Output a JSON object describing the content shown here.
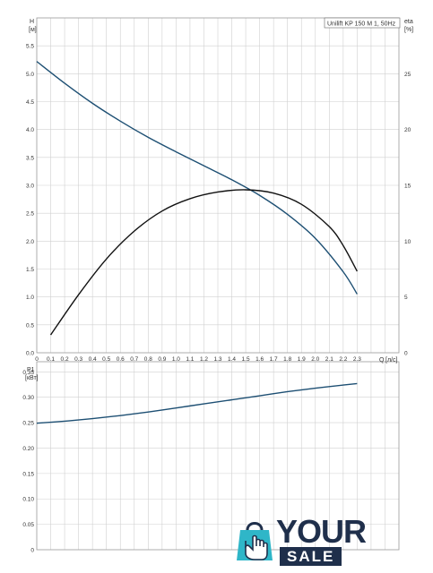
{
  "legend": {
    "label": "Unilift KP 150 M 1, 50Hz"
  },
  "chart_data": [
    {
      "type": "line",
      "title": "",
      "ylabel": "H",
      "yunit": "[м]",
      "y2label": "eta",
      "y2unit": "[%]",
      "xlabel": "Q",
      "xunit": "[л/с]",
      "xlim": [
        0,
        2.6
      ],
      "ylim": [
        0,
        6.0
      ],
      "y2lim": [
        0,
        30
      ],
      "grid": true,
      "x_ticks": [
        "0",
        "0.1",
        "0.2",
        "0.3",
        "0.4",
        "0.5",
        "0.6",
        "0.7",
        "0.8",
        "0.9",
        "1.0",
        "1.1",
        "1.2",
        "1.3",
        "1.4",
        "1.5",
        "1.6",
        "1.7",
        "1.8",
        "1.9",
        "2.0",
        "2.1",
        "2.2",
        "2.3"
      ],
      "y_ticks": [
        "0.0",
        "0.5",
        "1.0",
        "1.5",
        "2.0",
        "2.5",
        "3.0",
        "3.5",
        "4.0",
        "4.5",
        "5.0",
        "5.5"
      ],
      "y2_ticks": [
        "0",
        "5",
        "10",
        "15",
        "20",
        "25"
      ],
      "series": [
        {
          "axis": "left",
          "color": "#1d4f73",
          "x": [
            0,
            0.2,
            0.4,
            0.6,
            0.8,
            1.0,
            1.2,
            1.4,
            1.6,
            1.8,
            2.0,
            2.2,
            2.3
          ],
          "y": [
            5.22,
            4.83,
            4.47,
            4.15,
            3.86,
            3.6,
            3.35,
            3.1,
            2.82,
            2.48,
            2.05,
            1.45,
            1.05
          ]
        },
        {
          "axis": "right",
          "color": "#111111",
          "x": [
            0.1,
            0.3,
            0.5,
            0.7,
            0.9,
            1.1,
            1.3,
            1.5,
            1.7,
            1.9,
            2.1,
            2.2,
            2.3
          ],
          "y": [
            1.6,
            5.2,
            8.4,
            10.9,
            12.7,
            13.8,
            14.4,
            14.6,
            14.3,
            13.3,
            11.3,
            9.6,
            7.3
          ]
        }
      ]
    },
    {
      "type": "line",
      "title": "",
      "ylabel": "P1",
      "yunit": "[кВт]",
      "xlim": [
        0,
        2.6
      ],
      "ylim": [
        0,
        0.37
      ],
      "grid": true,
      "y_ticks": [
        "0",
        "0.05",
        "0.10",
        "0.15",
        "0.20",
        "0.25",
        "0.30",
        "0.35"
      ],
      "series": [
        {
          "axis": "left",
          "color": "#1d4f73",
          "x": [
            0,
            0.2,
            0.4,
            0.6,
            0.8,
            1.0,
            1.2,
            1.4,
            1.6,
            1.8,
            2.0,
            2.2,
            2.3
          ],
          "y": [
            0.249,
            0.253,
            0.258,
            0.264,
            0.271,
            0.279,
            0.287,
            0.295,
            0.303,
            0.311,
            0.318,
            0.324,
            0.327
          ]
        }
      ]
    }
  ],
  "logo": {
    "icon": "shopping-bag-hand-icon",
    "your": "YOUR",
    "sale": "SALE",
    "color_dark": "#1f2f4b",
    "color_accent": "#2fb6c8"
  }
}
